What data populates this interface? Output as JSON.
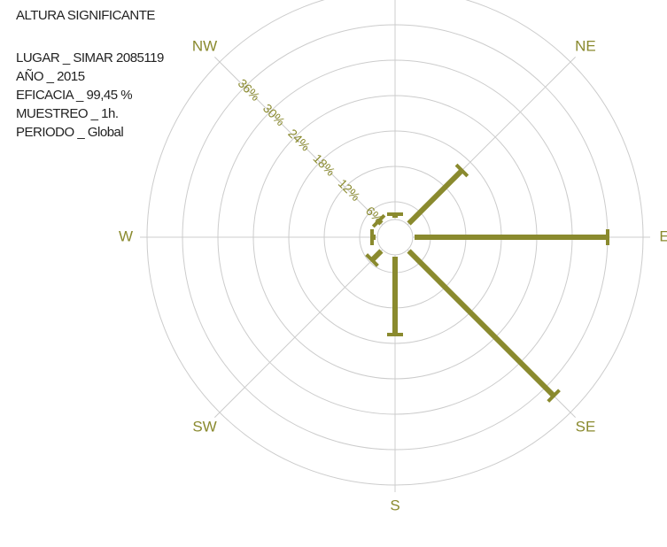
{
  "chart_data": {
    "type": "polar_bar",
    "title": "ALTURA SIGNIFICANTE",
    "info": [
      "LUGAR _ SIMAR 2085119",
      "AÑO _ 2015",
      "EFICACIA _ 99,45 %",
      "MUESTREO _ 1h.",
      "PERIODO _ Global"
    ],
    "categories": [
      null,
      "NE",
      "E",
      "SE",
      "S",
      "SW",
      "W",
      "NW"
    ],
    "values": [
      2,
      16,
      36,
      38,
      16.5,
      5.5,
      1,
      2
    ],
    "color": "#8a8a2e",
    "ylim": [
      0,
      42
    ],
    "yticks": [
      {
        "value": 6,
        "label": "6%"
      },
      {
        "value": 12,
        "label": "12%"
      },
      {
        "value": 18,
        "label": "18%"
      },
      {
        "value": 24,
        "label": "24%"
      },
      {
        "value": 30,
        "label": "30%"
      },
      {
        "value": 36,
        "label": "36%"
      }
    ],
    "grid": true
  }
}
